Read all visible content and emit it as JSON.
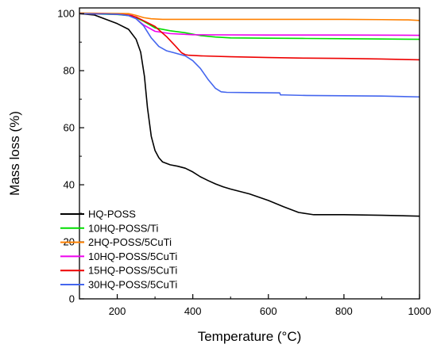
{
  "chart_data": {
    "type": "line",
    "title": "",
    "xlabel": "Temperature (°C)",
    "ylabel": "Mass loss (%)",
    "xlim": [
      100,
      1000
    ],
    "ylim": [
      0,
      102
    ],
    "xticks": [
      200,
      400,
      600,
      800,
      1000
    ],
    "yticks": [
      0,
      20,
      40,
      60,
      80,
      100
    ],
    "grid": false,
    "legend_position": "bottom-left",
    "series": [
      {
        "name": "HQ-POSS",
        "color": "#000000",
        "x": [
          100,
          140,
          170,
          200,
          230,
          250,
          262,
          272,
          280,
          290,
          300,
          310,
          320,
          340,
          360,
          380,
          400,
          420,
          440,
          460,
          480,
          500,
          550,
          600,
          640,
          680,
          720,
          800,
          900,
          1000
        ],
        "y": [
          100,
          99.5,
          98,
          96.5,
          94.5,
          91,
          86.5,
          78,
          67,
          57,
          52,
          49.5,
          48,
          47,
          46.5,
          45.8,
          44.5,
          42.8,
          41.5,
          40.3,
          39.3,
          38.5,
          36.8,
          34.5,
          32.3,
          30.3,
          29.5,
          29.5,
          29.3,
          29
        ]
      },
      {
        "name": "10HQ-POSS/Ti",
        "color": "#00dd00",
        "x": [
          100,
          200,
          240,
          270,
          300,
          340,
          380,
          420,
          460,
          500,
          600,
          700,
          800,
          900,
          1000
        ],
        "y": [
          100,
          99.7,
          99.2,
          97.3,
          95,
          94,
          93.3,
          92.3,
          91.8,
          91.5,
          91.4,
          91.3,
          91.2,
          91.1,
          91
        ]
      },
      {
        "name": "2HQ-POSS/5CuTi",
        "color": "#ff8000",
        "x": [
          100,
          230,
          250,
          270,
          290,
          320,
          400,
          600,
          800,
          900,
          970,
          1000
        ],
        "y": [
          100.2,
          100,
          99.4,
          98.6,
          98.2,
          98,
          98,
          98,
          98,
          97.9,
          97.8,
          97.6
        ]
      },
      {
        "name": "10HQ-POSS/5CuTi",
        "color": "#ee00ee",
        "x": [
          100,
          200,
          240,
          270,
          300,
          340,
          400,
          600,
          800,
          1000
        ],
        "y": [
          100,
          99.8,
          99.3,
          96,
          93.8,
          93,
          92.6,
          92.5,
          92.5,
          92.4
        ]
      },
      {
        "name": "15HQ-POSS/5CuTi",
        "color": "#ee0000",
        "x": [
          100,
          200,
          230,
          250,
          270,
          300,
          330,
          355,
          370,
          380,
          390,
          420,
          500,
          600,
          700,
          800,
          900,
          1000
        ],
        "y": [
          100,
          99.8,
          99.5,
          98.8,
          97.5,
          95.5,
          92,
          88.5,
          86.3,
          85.6,
          85.4,
          85.2,
          84.9,
          84.6,
          84.4,
          84.3,
          84.1,
          83.8
        ]
      },
      {
        "name": "30HQ-POSS/5CuTi",
        "color": "#4466ee",
        "x": [
          100,
          200,
          230,
          250,
          270,
          290,
          310,
          330,
          350,
          380,
          400,
          420,
          440,
          460,
          475,
          490,
          550,
          630,
          632,
          640,
          700,
          800,
          900,
          1000
        ],
        "y": [
          100,
          99.8,
          99.3,
          98.2,
          95.7,
          91.5,
          88.5,
          87,
          86.3,
          85.2,
          83.5,
          80.8,
          77,
          73.8,
          72.6,
          72.4,
          72.3,
          72.2,
          71.5,
          71.5,
          71.3,
          71.2,
          71.1,
          70.8
        ]
      }
    ]
  }
}
